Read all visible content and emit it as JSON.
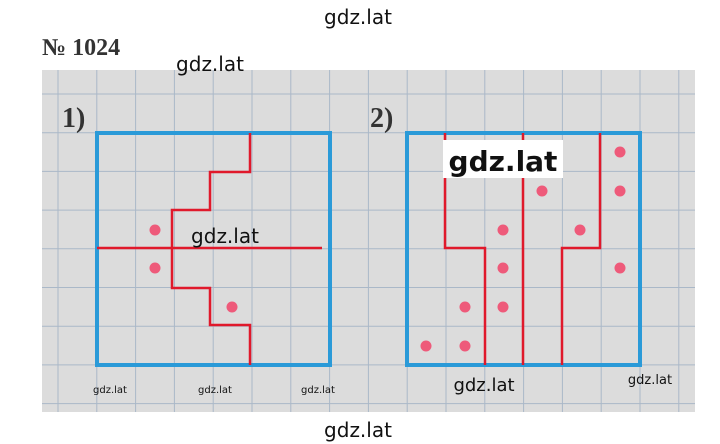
{
  "header": {
    "title": "№ 1024"
  },
  "figures": [
    {
      "label": "1)"
    },
    {
      "label": "2)"
    }
  ],
  "watermarks": [
    "gdz.lat",
    "gdz.lat",
    "gdz.lat",
    "gdz.lat",
    "gdz.lat",
    "gdz.lat",
    "gdz.lat",
    "gdz.lat",
    "gdz.lat",
    "gdz.lat"
  ]
}
